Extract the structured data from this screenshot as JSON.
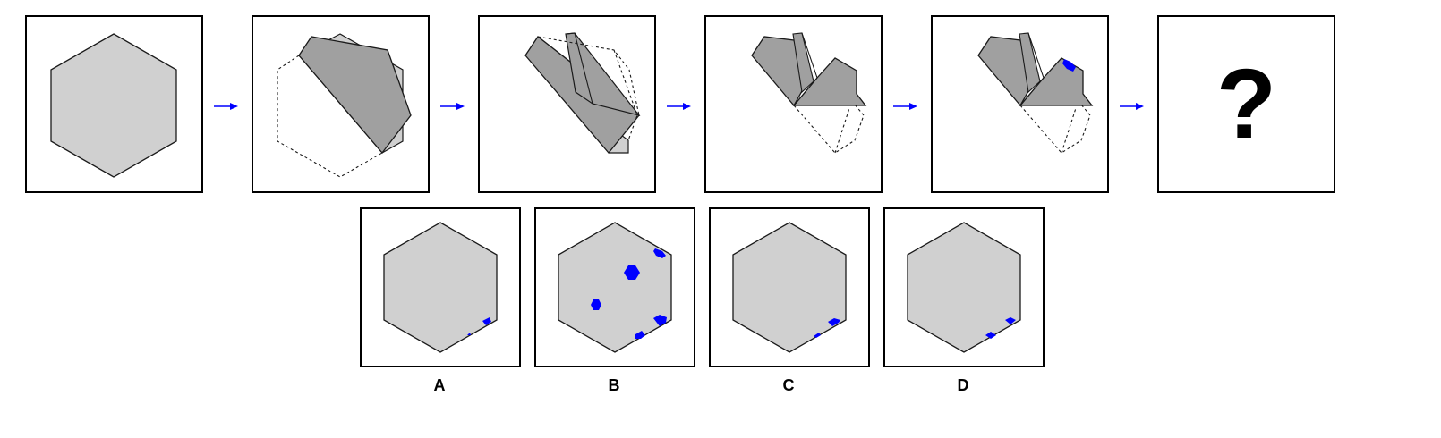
{
  "colors": {
    "paper_light": "#d0d0d0",
    "paper_dark": "#a0a0a0",
    "outline": "#1a1a1a",
    "hole": "#0000ff",
    "arrow": "#0000ff"
  },
  "steps": [
    {
      "icon": "hexagon-paper-icon"
    },
    {
      "icon": "first-fold-icon"
    },
    {
      "icon": "second-fold-icon"
    },
    {
      "icon": "third-fold-icon"
    },
    {
      "icon": "punched-paper-icon"
    },
    {
      "icon": "unknown-result",
      "text": "?"
    }
  ],
  "options": [
    {
      "label": "A"
    },
    {
      "label": "B"
    },
    {
      "label": "C"
    },
    {
      "label": "D"
    }
  ]
}
